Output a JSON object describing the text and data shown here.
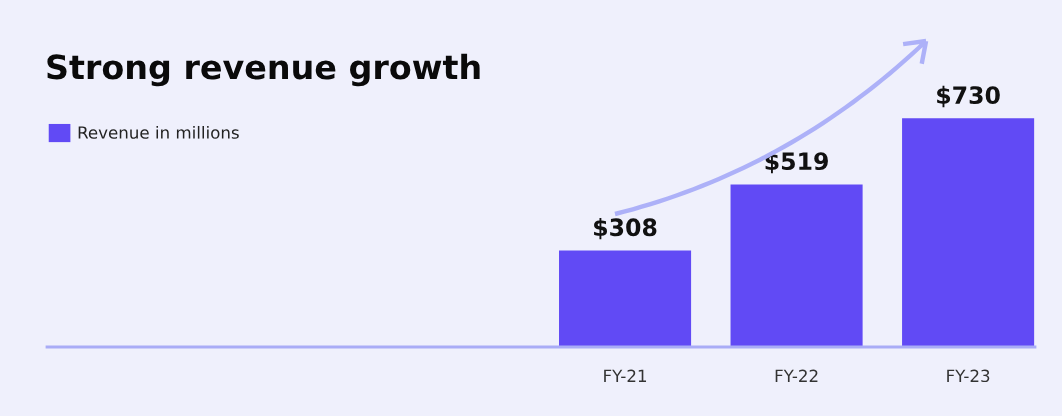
{
  "chart_data": {
    "type": "bar",
    "title": "Strong revenue growth",
    "categories": [
      "FY-21",
      "FY-22",
      "FY-23"
    ],
    "series": [
      {
        "name": "Revenue in millions",
        "color": "#614af5",
        "values": [
          308,
          519,
          730
        ],
        "value_labels": [
          "$308",
          "$519",
          "$730"
        ]
      }
    ],
    "legend": "top left",
    "grid": false
  }
}
